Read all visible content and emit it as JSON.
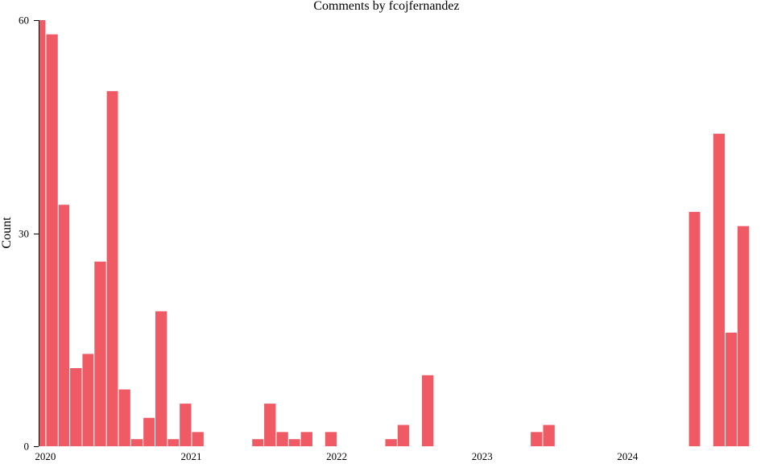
{
  "chart_data": {
    "type": "bar",
    "title": "Comments by fcojfernandez",
    "xlabel": "",
    "ylabel": "Count",
    "ylim": [
      0,
      60
    ],
    "yticks": [
      0,
      30,
      60
    ],
    "x_axis": "date",
    "xlim": [
      "2019-12-15",
      "2024-12-31"
    ],
    "xticks": [
      {
        "date": "2020-01-01",
        "label": "2020"
      },
      {
        "date": "2021-01-01",
        "label": "2021"
      },
      {
        "date": "2022-01-01",
        "label": "2022"
      },
      {
        "date": "2023-01-01",
        "label": "2023"
      },
      {
        "date": "2024-01-01",
        "label": "2024"
      }
    ],
    "bar_color": "#f05a64",
    "grid": false,
    "legend": "none",
    "series": [
      {
        "dates": [
          "2019-12-15",
          "2020-01-01",
          "2020-02-01",
          "2020-03-01",
          "2020-04-01",
          "2020-05-01",
          "2020-06-01",
          "2020-07-01",
          "2020-08-01",
          "2020-09-01",
          "2020-10-01",
          "2020-11-01",
          "2020-12-01",
          "2021-01-01",
          "2021-02-01",
          "2021-06-01",
          "2021-07-01",
          "2021-08-01",
          "2021-09-01",
          "2021-10-01",
          "2021-12-01",
          "2022-05-01",
          "2022-06-01",
          "2022-08-01",
          "2023-05-01",
          "2023-06-01",
          "2024-06-01",
          "2024-07-01",
          "2024-08-01",
          "2024-09-01",
          "2024-10-01",
          "2024-11-01",
          "2024-12-01"
        ],
        "values": [
          60,
          58,
          34,
          11,
          13,
          26,
          50,
          8,
          1,
          4,
          19,
          1,
          6,
          2,
          0,
          1,
          6,
          2,
          1,
          2,
          2,
          1,
          3,
          10,
          2,
          3,
          33,
          0,
          44,
          16,
          31,
          0,
          0
        ]
      }
    ]
  }
}
